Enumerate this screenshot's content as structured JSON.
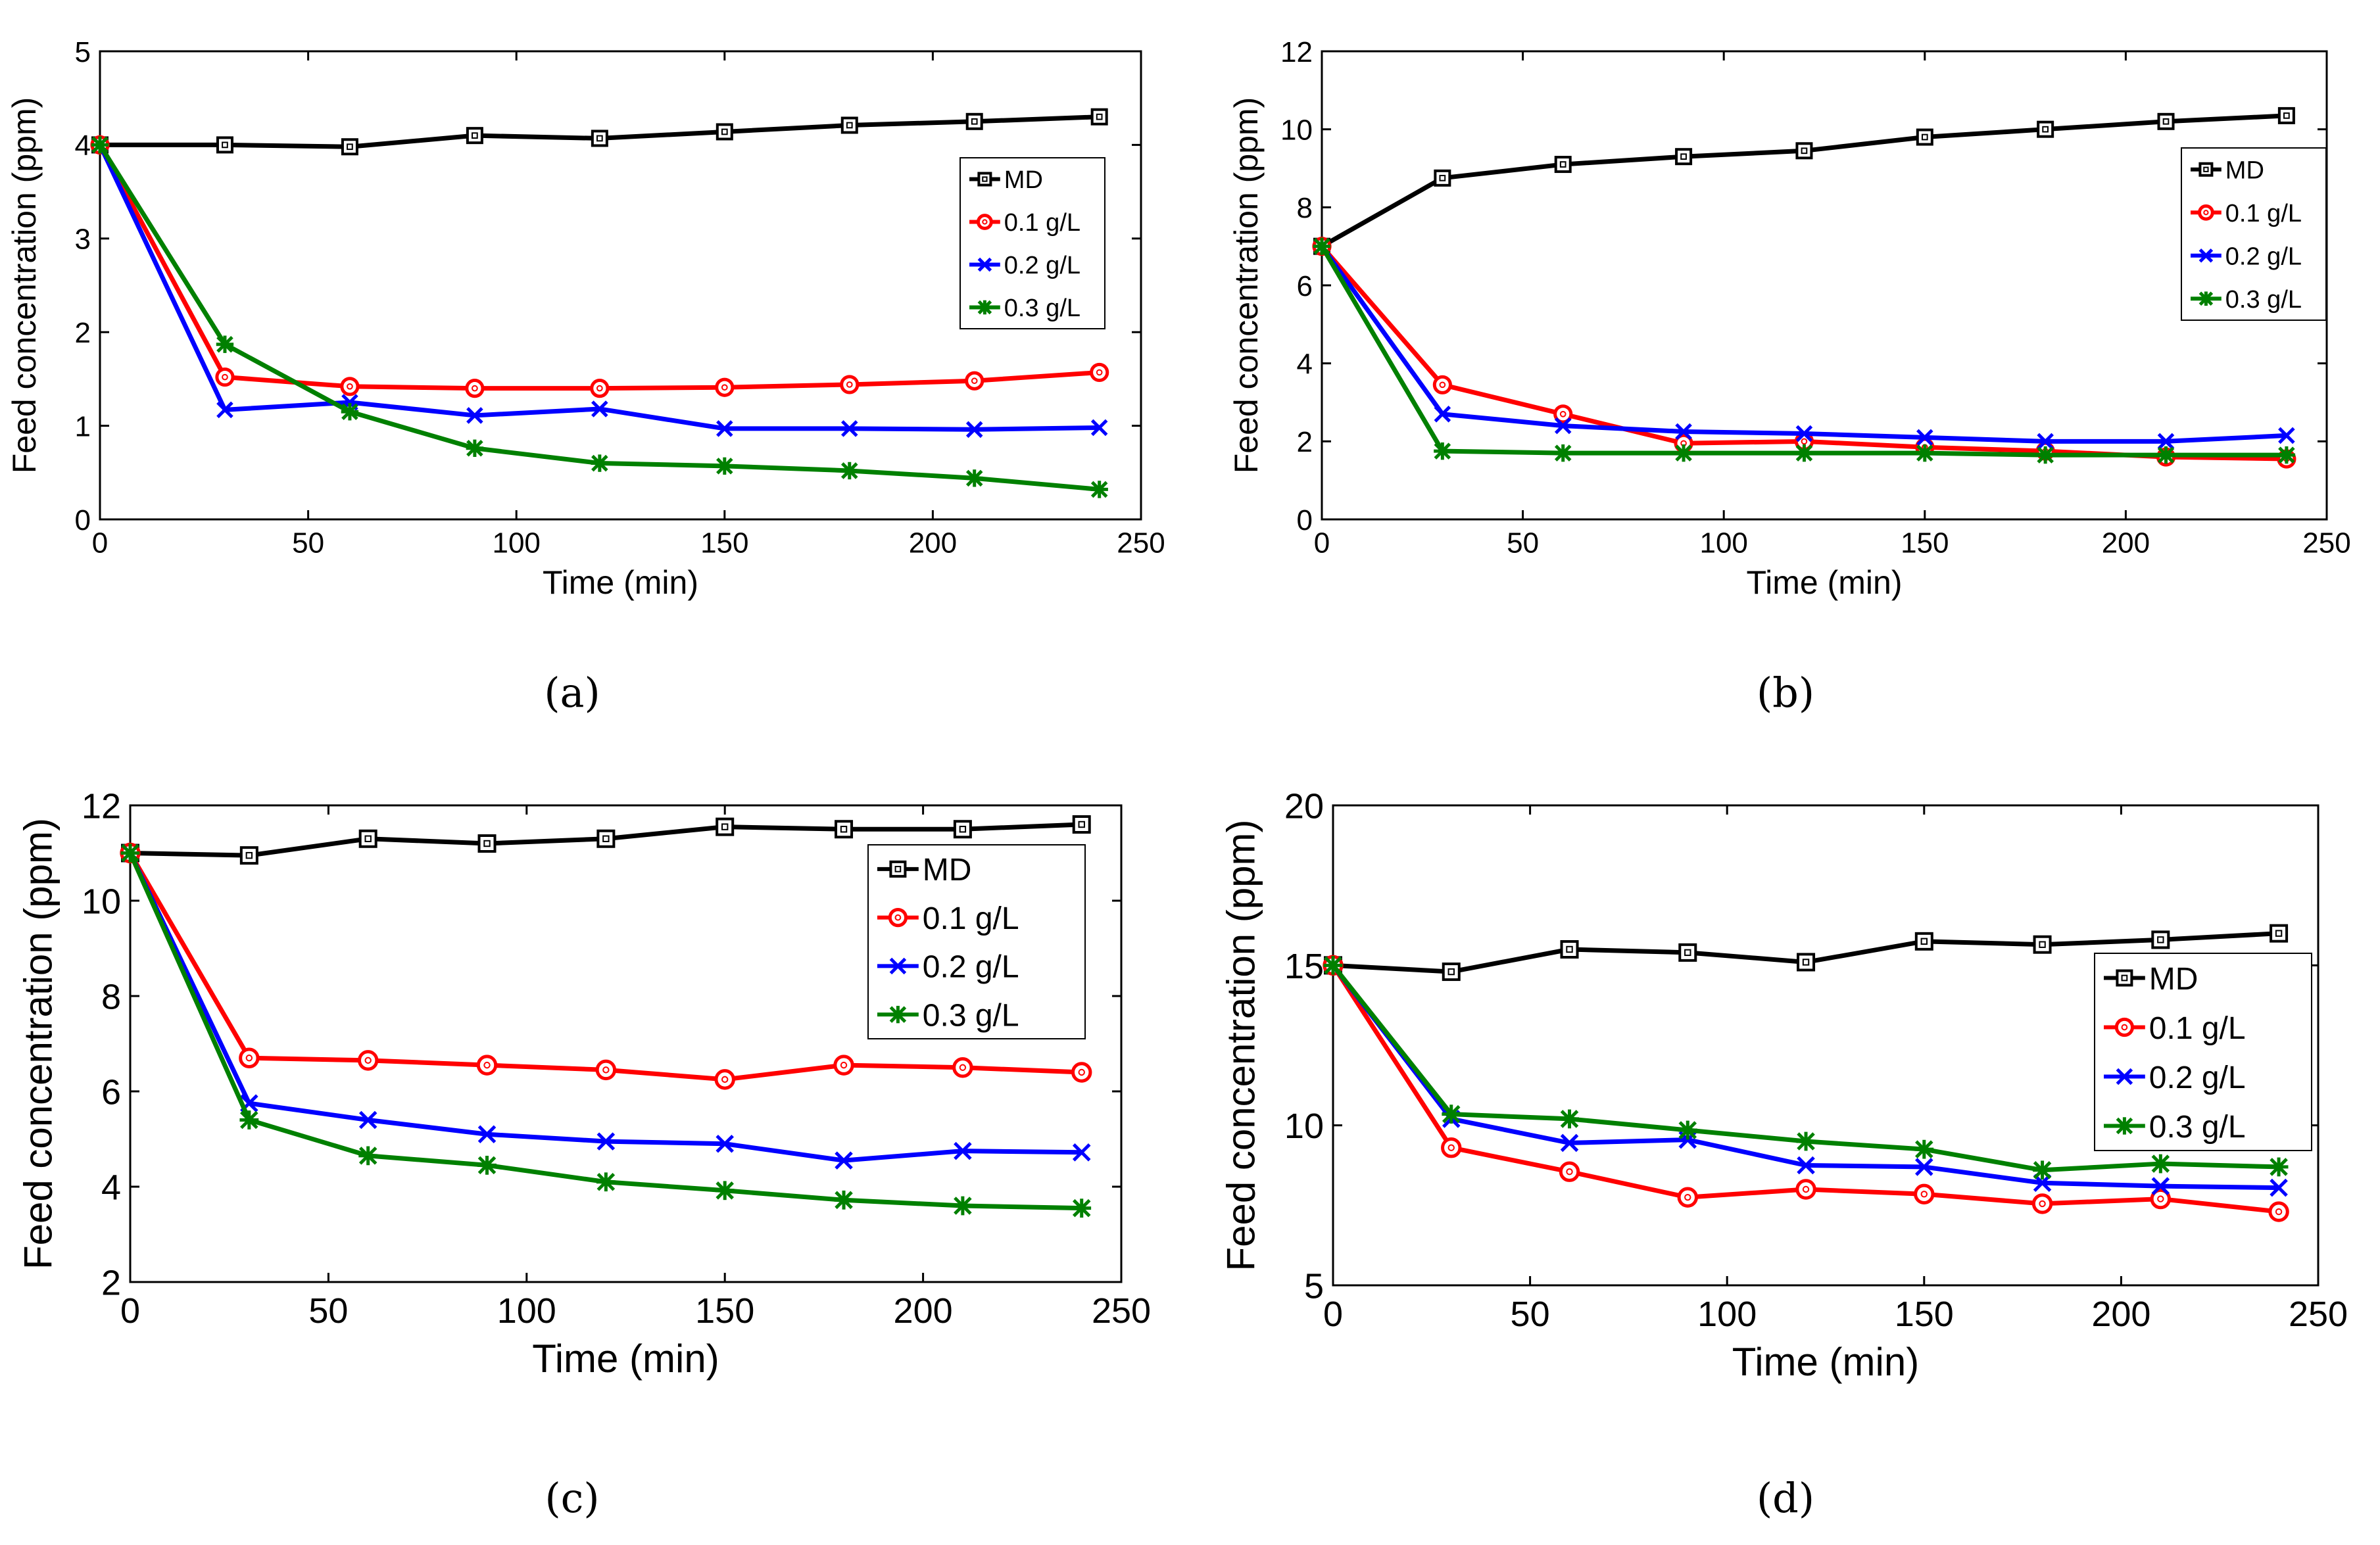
{
  "colors": {
    "MD": "#000000",
    "0.1 g/L": "#ff0000",
    "0.2 g/L": "#0000ff",
    "0.3 g/L": "#008000"
  },
  "chart_data": [
    {
      "type": "line",
      "caption": "(a)",
      "xlabel": "Time (min)",
      "ylabel": "Feed concentration (ppm)",
      "xlim": [
        0,
        250
      ],
      "ylim": [
        0,
        5
      ],
      "xticks": [
        "0",
        "50",
        "100",
        "150",
        "200",
        "250"
      ],
      "yticks": [
        "0",
        "1",
        "2",
        "3",
        "4",
        "5"
      ],
      "legend_position": "right",
      "x": [
        0,
        30,
        60,
        90,
        120,
        150,
        180,
        210,
        240
      ],
      "series": [
        {
          "name": "MD",
          "marker": "square",
          "values": [
            4.0,
            4.0,
            3.98,
            4.1,
            4.07,
            4.14,
            4.21,
            4.25,
            4.3
          ]
        },
        {
          "name": "0.1 g/L",
          "marker": "circle",
          "values": [
            4.0,
            1.52,
            1.42,
            1.4,
            1.4,
            1.41,
            1.44,
            1.48,
            1.57
          ]
        },
        {
          "name": "0.2 g/L",
          "marker": "x",
          "values": [
            4.0,
            1.17,
            1.25,
            1.11,
            1.18,
            0.97,
            0.97,
            0.96,
            0.98
          ]
        },
        {
          "name": "0.3 g/L",
          "marker": "star",
          "values": [
            4.0,
            1.87,
            1.15,
            0.76,
            0.6,
            0.57,
            0.52,
            0.44,
            0.32
          ]
        }
      ]
    },
    {
      "type": "line",
      "caption": "(b)",
      "xlabel": "Time (min)",
      "ylabel": "Feed concentration (ppm)",
      "xlim": [
        0,
        250
      ],
      "ylim": [
        0,
        12
      ],
      "xticks": [
        "0",
        "50",
        "100",
        "150",
        "200",
        "250"
      ],
      "yticks": [
        "0",
        "2",
        "4",
        "6",
        "8",
        "10",
        "12"
      ],
      "legend_position": "right",
      "x": [
        0,
        30,
        60,
        90,
        120,
        150,
        180,
        210,
        240
      ],
      "series": [
        {
          "name": "MD",
          "marker": "square",
          "values": [
            7.0,
            8.75,
            9.1,
            9.3,
            9.45,
            9.8,
            10.0,
            10.2,
            10.35
          ]
        },
        {
          "name": "0.1 g/L",
          "marker": "circle",
          "values": [
            7.0,
            3.45,
            2.7,
            1.95,
            2.0,
            1.85,
            1.75,
            1.6,
            1.55
          ]
        },
        {
          "name": "0.2 g/L",
          "marker": "x",
          "values": [
            7.0,
            2.7,
            2.4,
            2.25,
            2.2,
            2.1,
            2.0,
            2.0,
            2.15
          ]
        },
        {
          "name": "0.3 g/L",
          "marker": "star",
          "values": [
            7.0,
            1.75,
            1.7,
            1.7,
            1.7,
            1.7,
            1.65,
            1.65,
            1.65
          ]
        }
      ]
    },
    {
      "type": "line",
      "caption": "(c)",
      "xlabel": "Time (min)",
      "ylabel": "Feed concentration (ppm)",
      "xlim": [
        0,
        250
      ],
      "ylim": [
        2,
        12
      ],
      "xticks": [
        "0",
        "50",
        "100",
        "150",
        "200",
        "250"
      ],
      "yticks": [
        "2",
        "4",
        "6",
        "8",
        "10",
        "12"
      ],
      "legend_position": "right",
      "x": [
        0,
        30,
        60,
        90,
        120,
        150,
        180,
        210,
        240
      ],
      "series": [
        {
          "name": "MD",
          "marker": "square",
          "values": [
            11.0,
            10.95,
            11.3,
            11.2,
            11.3,
            11.55,
            11.5,
            11.5,
            11.6
          ]
        },
        {
          "name": "0.1 g/L",
          "marker": "circle",
          "values": [
            11.0,
            6.7,
            6.65,
            6.55,
            6.45,
            6.25,
            6.55,
            6.5,
            6.4
          ]
        },
        {
          "name": "0.2 g/L",
          "marker": "x",
          "values": [
            11.0,
            5.75,
            5.4,
            5.1,
            4.95,
            4.9,
            4.55,
            4.75,
            4.72
          ]
        },
        {
          "name": "0.3 g/L",
          "marker": "star",
          "values": [
            11.0,
            5.4,
            4.65,
            4.45,
            4.1,
            3.92,
            3.72,
            3.6,
            3.55
          ]
        }
      ]
    },
    {
      "type": "line",
      "caption": "(d)",
      "xlabel": "Time (min)",
      "ylabel": "Feed concentration (ppm)",
      "xlim": [
        0,
        250
      ],
      "ylim": [
        5,
        20
      ],
      "xticks": [
        "0",
        "50",
        "100",
        "150",
        "200",
        "250"
      ],
      "yticks": [
        "5",
        "10",
        "15",
        "20"
      ],
      "legend_position": "right",
      "x": [
        0,
        30,
        60,
        90,
        120,
        150,
        180,
        210,
        240
      ],
      "series": [
        {
          "name": "MD",
          "marker": "square",
          "values": [
            15.0,
            14.8,
            15.5,
            15.4,
            15.1,
            15.75,
            15.65,
            15.8,
            16.0
          ]
        },
        {
          "name": "0.1 g/L",
          "marker": "circle",
          "values": [
            15.0,
            9.3,
            8.55,
            7.75,
            8.0,
            7.85,
            7.55,
            7.7,
            7.3
          ]
        },
        {
          "name": "0.2 g/L",
          "marker": "x",
          "values": [
            15.0,
            10.2,
            9.45,
            9.55,
            8.75,
            8.7,
            8.2,
            8.1,
            8.05
          ]
        },
        {
          "name": "0.3 g/L",
          "marker": "star",
          "values": [
            15.0,
            10.35,
            10.2,
            9.85,
            9.5,
            9.25,
            8.6,
            8.8,
            8.7
          ]
        }
      ]
    }
  ]
}
